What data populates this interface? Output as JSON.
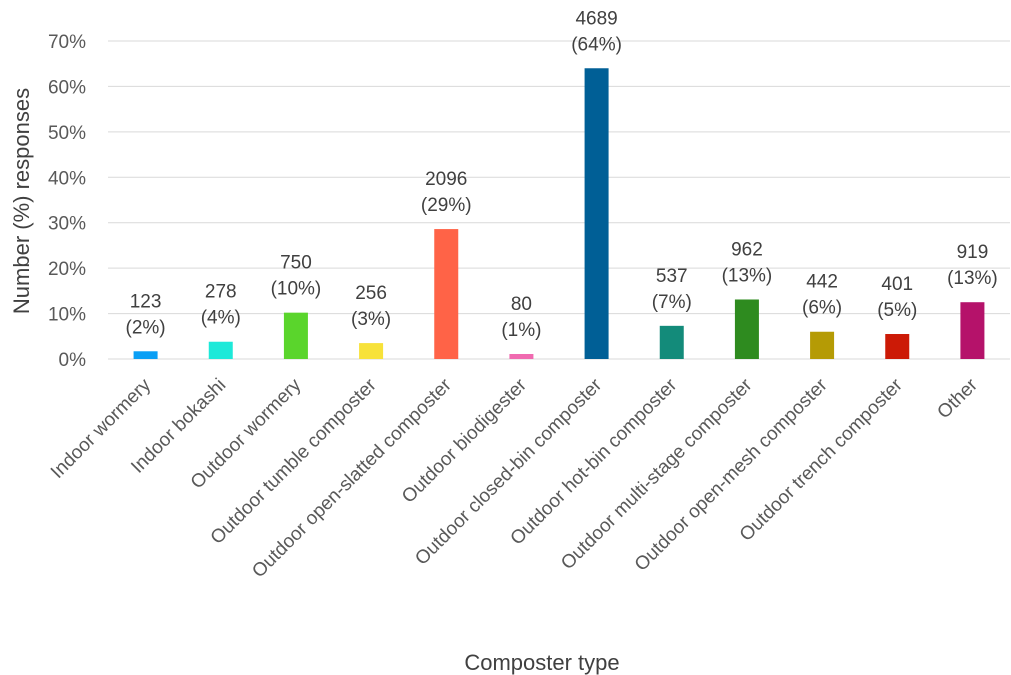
{
  "chart_data": {
    "type": "bar",
    "title": "",
    "xlabel": "Composter type",
    "ylabel": "Number (%) responses",
    "ylim": [
      0,
      70
    ],
    "ytick_step": 10,
    "ytick_suffix": "%",
    "grid": true,
    "legend": "none",
    "categories": [
      "Indoor wormery",
      "Indoor bokashi",
      "Outdoor wormery",
      "Outdoor tumble composter",
      "Outdoor open-slatted composter",
      "Outdoor biodigester",
      "Outdoor closed-bin composter",
      "Outdoor hot-bin composter",
      "Outdoor multi-stage composter",
      "Outdoor open-mesh composter",
      "Outdoor trench composter",
      "Other"
    ],
    "values": [
      1.7,
      3.8,
      10.2,
      3.5,
      28.6,
      1.1,
      64.0,
      7.3,
      13.1,
      6.0,
      5.5,
      12.5
    ],
    "counts": [
      "123",
      "278",
      "750",
      "256",
      "2096",
      "80",
      "4689",
      "537",
      "962",
      "442",
      "401",
      "919"
    ],
    "percent_labels": [
      "(2%)",
      "(4%)",
      "(10%)",
      "(3%)",
      "(29%)",
      "(1%)",
      "(64%)",
      "(7%)",
      "(13%)",
      "(6%)",
      "(5%)",
      "(13%)"
    ],
    "colors": [
      "#0a9ff5",
      "#1de9d9",
      "#5ad52c",
      "#f7e23a",
      "#ff6347",
      "#f06ab0",
      "#005f96",
      "#138b7a",
      "#2e8b1f",
      "#b59b05",
      "#cc1a06",
      "#b5126a"
    ]
  }
}
